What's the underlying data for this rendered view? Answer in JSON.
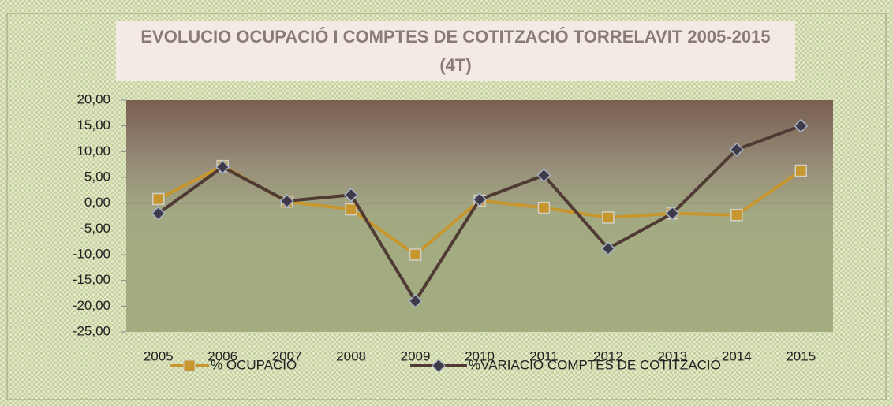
{
  "chart_data": {
    "type": "line",
    "title": "EVOLUCIO OCUPACIÓ I COMPTES DE COTITZACIÓ TORRELAVIT 2005-2015 (4T)",
    "categories": [
      "2005",
      "2006",
      "2007",
      "2008",
      "2009",
      "2010",
      "2011",
      "2012",
      "2013",
      "2014",
      "2015"
    ],
    "series": [
      {
        "name": "% OCUPACIÓ",
        "color": "#c8962e",
        "marker": "square",
        "values": [
          0.8,
          7.2,
          0.3,
          -1.2,
          -10.0,
          0.5,
          -0.9,
          -2.8,
          -2.0,
          -2.3,
          6.3
        ]
      },
      {
        "name": "%VARIACIÓ COMPTES DE COTITZACIÓ",
        "color": "#4f3a34",
        "marker": "diamond",
        "values": [
          -2.0,
          7.0,
          0.4,
          1.6,
          -19.0,
          0.7,
          5.4,
          -8.8,
          -2.0,
          10.4,
          15.0
        ]
      }
    ],
    "ylim": [
      -25,
      20
    ],
    "yticks": [
      {
        "value": -25,
        "label": "-25,00"
      },
      {
        "value": -20,
        "label": "-20,00"
      },
      {
        "value": -15,
        "label": "-15,00"
      },
      {
        "value": -10,
        "label": "-10,00"
      },
      {
        "value": -5,
        "label": "-5,00"
      },
      {
        "value": 0,
        "label": "0,00"
      },
      {
        "value": 5,
        "label": "5,00"
      },
      {
        "value": 10,
        "label": "10,00"
      },
      {
        "value": 15,
        "label": "15,00"
      },
      {
        "value": 20,
        "label": "20,00"
      }
    ],
    "legend": "bottom"
  }
}
